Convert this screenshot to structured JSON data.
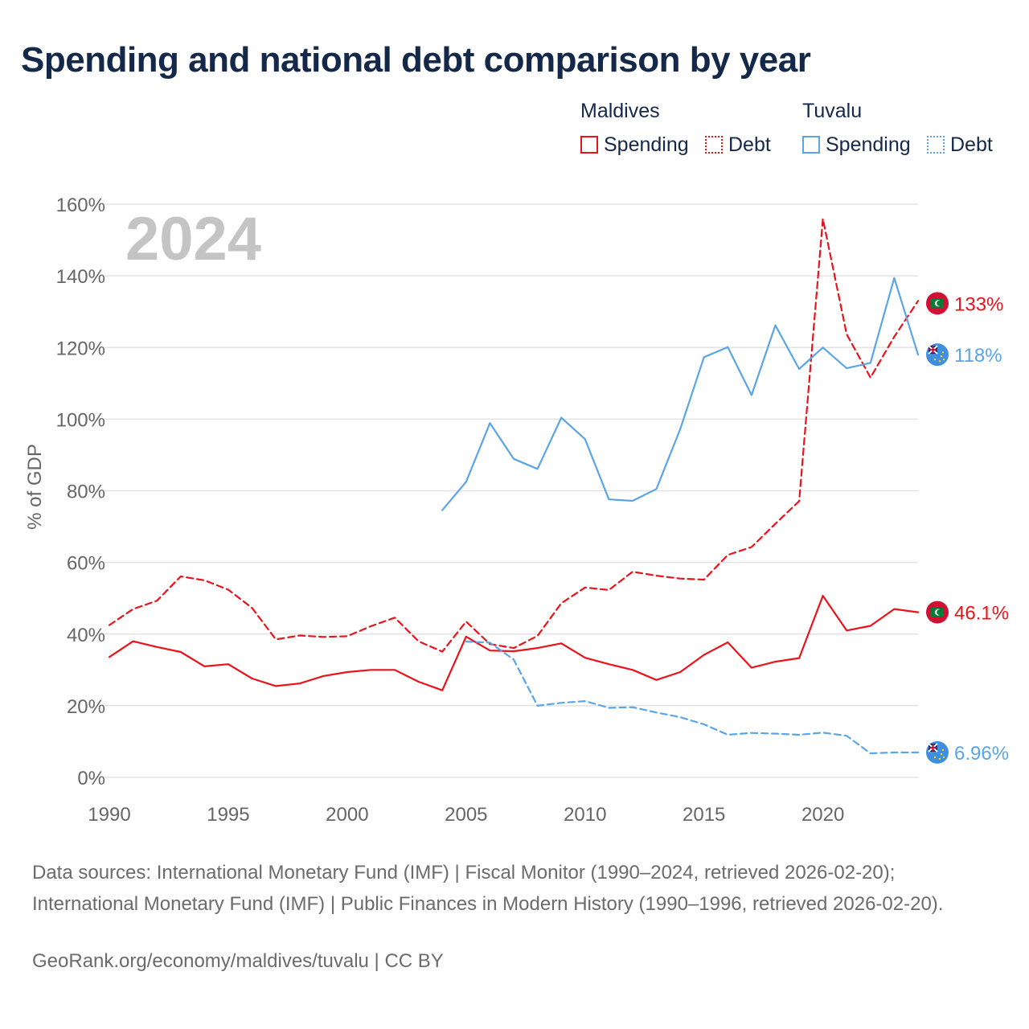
{
  "title": "Spending and national debt comparison by year",
  "legend": {
    "groups": [
      {
        "country": "Maldives",
        "color": "#e8131b",
        "items": [
          {
            "label": "Spending",
            "style": "solid"
          },
          {
            "label": "Debt",
            "style": "dotted"
          }
        ]
      },
      {
        "country": "Tuvalu",
        "color": "#5aa5e6",
        "items": [
          {
            "label": "Spending",
            "style": "solid"
          },
          {
            "label": "Debt",
            "style": "dotted"
          }
        ]
      }
    ]
  },
  "year_label": "2024",
  "source_text": "Data sources: International Monetary Fund (IMF) | Fiscal Monitor (1990–2024, retrieved 2026-02-20); International Monetary Fund (IMF) | Public Finances in Modern History (1990–1996, retrieved 2026-02-20).",
  "credit": "GeoRank.org/economy/maldives/tuvalu | CC BY",
  "colors": {
    "maldives": "#e8131b",
    "tuvalu": "#5aa5e6",
    "grid": "#e3e3e3",
    "axis_text": "#666666",
    "year_watermark": "#c4c4c4"
  },
  "chart_data": {
    "type": "line",
    "title": "Spending and national debt comparison by year",
    "xlabel": "",
    "ylabel": "% of GDP",
    "xlim": [
      1990,
      2024
    ],
    "ylim": [
      0,
      160
    ],
    "xticks": [
      1990,
      1995,
      2000,
      2005,
      2010,
      2015,
      2020
    ],
    "xtick_labels": [
      "1990",
      "1995",
      "2000",
      "2005",
      "2010",
      "2015",
      "2020"
    ],
    "yticks": [
      0,
      20,
      40,
      60,
      80,
      100,
      120,
      140,
      160
    ],
    "ytick_labels": [
      "0%",
      "20%",
      "40%",
      "60%",
      "80%",
      "100%",
      "120%",
      "140%",
      "160%"
    ],
    "grid": true,
    "series": [
      {
        "name": "Maldives Spending",
        "country": "maldives",
        "style": "solid",
        "end_label": "46.1%",
        "x": [
          1990,
          1991,
          1992,
          1993,
          1994,
          1995,
          1996,
          1997,
          1998,
          1999,
          2000,
          2001,
          2002,
          2003,
          2004,
          2005,
          2006,
          2007,
          2008,
          2009,
          2010,
          2011,
          2012,
          2013,
          2014,
          2015,
          2016,
          2017,
          2018,
          2019,
          2020,
          2021,
          2022,
          2023,
          2024
        ],
        "values": [
          33.6,
          38.0,
          36.4,
          35.0,
          31.0,
          31.6,
          27.6,
          25.5,
          26.2,
          28.3,
          29.4,
          30.0,
          30.0,
          26.7,
          24.3,
          39.3,
          35.4,
          35.2,
          36.1,
          37.4,
          33.4,
          31.6,
          30.0,
          27.2,
          29.4,
          34.2,
          37.7,
          30.6,
          32.3,
          33.3,
          50.7,
          41.0,
          42.3,
          47.0,
          46.1
        ]
      },
      {
        "name": "Maldives Debt",
        "country": "maldives",
        "style": "dashed",
        "end_label": "133%",
        "x": [
          1990,
          1991,
          1992,
          1993,
          1994,
          1995,
          1996,
          1997,
          1998,
          1999,
          2000,
          2001,
          2002,
          2003,
          2004,
          2005,
          2006,
          2007,
          2008,
          2009,
          2010,
          2011,
          2012,
          2013,
          2014,
          2015,
          2016,
          2017,
          2018,
          2019,
          2020,
          2021,
          2022,
          2023,
          2024
        ],
        "values": [
          42.5,
          47.0,
          49.3,
          56.1,
          55.0,
          52.4,
          47.3,
          38.5,
          39.6,
          39.2,
          39.4,
          42.2,
          44.6,
          38.0,
          35.1,
          43.5,
          37.2,
          36.1,
          39.5,
          48.6,
          53.0,
          52.3,
          57.4,
          56.3,
          55.5,
          55.2,
          62.1,
          64.3,
          70.8,
          77.1,
          155.9,
          123.7,
          111.6,
          123.0,
          133.0
        ]
      },
      {
        "name": "Tuvalu Spending",
        "country": "tuvalu",
        "style": "solid",
        "end_label": "118%",
        "x": [
          2004,
          2005,
          2006,
          2007,
          2008,
          2009,
          2010,
          2011,
          2012,
          2013,
          2014,
          2015,
          2016,
          2017,
          2018,
          2019,
          2020,
          2021,
          2022,
          2023,
          2024
        ],
        "values": [
          74.6,
          82.5,
          98.9,
          88.9,
          86.1,
          100.4,
          94.4,
          77.6,
          77.2,
          80.5,
          97.2,
          117.3,
          120.1,
          106.7,
          126.2,
          114.0,
          120.0,
          114.2,
          115.7,
          139.4,
          118.0
        ]
      },
      {
        "name": "Tuvalu Debt",
        "country": "tuvalu",
        "style": "dashed",
        "end_label": "6.96%",
        "x": [
          2005,
          2006,
          2007,
          2008,
          2009,
          2010,
          2011,
          2012,
          2013,
          2014,
          2015,
          2016,
          2017,
          2018,
          2019,
          2020,
          2021,
          2022,
          2023,
          2024
        ],
        "values": [
          37.9,
          37.6,
          32.9,
          20.0,
          20.8,
          21.3,
          19.4,
          19.6,
          18.1,
          16.8,
          14.8,
          11.9,
          12.4,
          12.2,
          11.9,
          12.5,
          11.6,
          6.7,
          6.96,
          6.96
        ]
      }
    ]
  }
}
